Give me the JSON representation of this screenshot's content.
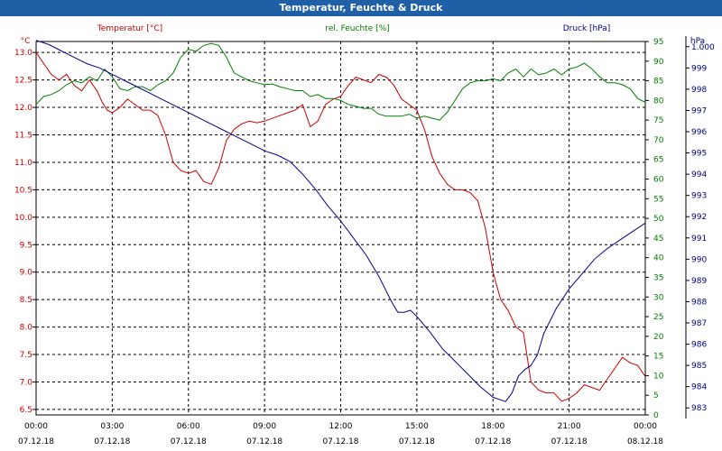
{
  "chart_data": {
    "type": "line",
    "title": "Temperatur, Feuchte & Druck",
    "legend_placement": "top",
    "grid": true,
    "x_ticks": [
      {
        "time": "00:00",
        "date": "07.12.18"
      },
      {
        "time": "03:00",
        "date": "07.12.18"
      },
      {
        "time": "06:00",
        "date": "07.12.18"
      },
      {
        "time": "09:00",
        "date": "07.12.18"
      },
      {
        "time": "12:00",
        "date": "07.12.18"
      },
      {
        "time": "15:00",
        "date": "07.12.18"
      },
      {
        "time": "18:00",
        "date": "07.12.18"
      },
      {
        "time": "21:00",
        "date": "07.12.18"
      },
      {
        "time": "00:00",
        "date": "08.12.18"
      }
    ],
    "xlim": [
      0,
      24
    ],
    "axes": {
      "temperature": {
        "unit_label": "°C",
        "ylim": [
          6.4,
          13.2
        ],
        "ticks": [
          "6.5",
          "7.0",
          "7.5",
          "8.0",
          "8.5",
          "9.0",
          "9.5",
          "10.0",
          "10.5",
          "11.0",
          "11.5",
          "12.0",
          "12.5",
          "13.0"
        ],
        "color": "#cc0000",
        "side": "left"
      },
      "humidity": {
        "unit_label": "%",
        "ylim": [
          0,
          95
        ],
        "ticks": [
          "0",
          "5",
          "10",
          "15",
          "20",
          "25",
          "30",
          "35",
          "40",
          "45",
          "50",
          "55",
          "60",
          "65",
          "70",
          "75",
          "80",
          "85",
          "90",
          "95"
        ],
        "color": "#008000",
        "side": "right"
      },
      "pressure": {
        "unit_label": "hPa",
        "ylim": [
          982.5,
          1000.5
        ],
        "ticks": [
          "983",
          "984",
          "985",
          "986",
          "987",
          "988",
          "989",
          "990",
          "991",
          "992",
          "993",
          "994",
          "995",
          "996",
          "997",
          "998",
          "999",
          "1.000"
        ],
        "color": "#00008b",
        "side": "right"
      }
    },
    "series": [
      {
        "name": "Temperatur [°C]",
        "axis": "temperature",
        "color": "#cc0000",
        "x": [
          0,
          0.3,
          0.6,
          0.9,
          1.2,
          1.5,
          1.8,
          2.1,
          2.4,
          2.6,
          2.8,
          3.0,
          3.3,
          3.6,
          3.9,
          4.2,
          4.5,
          4.8,
          5.1,
          5.4,
          5.7,
          6.0,
          6.3,
          6.6,
          6.9,
          7.2,
          7.5,
          7.8,
          8.1,
          8.4,
          8.7,
          9.0,
          9.3,
          9.6,
          9.9,
          10.2,
          10.5,
          10.8,
          11.1,
          11.4,
          11.7,
          12.0,
          12.3,
          12.6,
          12.9,
          13.2,
          13.5,
          13.8,
          14.1,
          14.4,
          14.7,
          15.0,
          15.3,
          15.6,
          15.9,
          16.2,
          16.5,
          16.8,
          17.1,
          17.4,
          17.7,
          18.0,
          18.3,
          18.6,
          18.9,
          19.2,
          19.5,
          19.8,
          20.1,
          20.4,
          20.7,
          21.0,
          21.3,
          21.6,
          21.9,
          22.2,
          22.5,
          22.8,
          23.1,
          23.4,
          23.7,
          24.0
        ],
        "y": [
          13.0,
          12.8,
          12.6,
          12.5,
          12.6,
          12.4,
          12.3,
          12.5,
          12.3,
          12.1,
          11.95,
          11.9,
          12.0,
          12.15,
          12.05,
          11.95,
          11.95,
          11.85,
          11.5,
          11.0,
          10.85,
          10.8,
          10.85,
          10.65,
          10.6,
          10.9,
          11.4,
          11.6,
          11.7,
          11.75,
          11.72,
          11.75,
          11.8,
          11.85,
          11.9,
          11.95,
          12.05,
          11.65,
          11.75,
          12.05,
          12.15,
          12.2,
          12.4,
          12.55,
          12.5,
          12.45,
          12.6,
          12.55,
          12.4,
          12.15,
          12.05,
          11.95,
          11.6,
          11.1,
          10.8,
          10.6,
          10.5,
          10.5,
          10.45,
          10.3,
          9.8,
          9.0,
          8.5,
          8.3,
          8.0,
          7.9,
          7.0,
          6.85,
          6.8,
          6.8,
          6.65,
          6.7,
          6.8,
          6.95,
          6.9,
          6.85,
          7.05,
          7.25,
          7.45,
          7.35,
          7.3,
          7.1
        ]
      },
      {
        "name": "rel. Feuchte [%]",
        "axis": "humidity",
        "color": "#008000",
        "x": [
          0,
          0.3,
          0.6,
          0.9,
          1.2,
          1.5,
          1.8,
          2.1,
          2.4,
          2.7,
          3.0,
          3.3,
          3.6,
          3.9,
          4.2,
          4.5,
          4.8,
          5.1,
          5.4,
          5.7,
          6.0,
          6.3,
          6.6,
          6.9,
          7.2,
          7.5,
          7.8,
          8.1,
          8.4,
          8.7,
          9.0,
          9.3,
          9.6,
          9.9,
          10.2,
          10.5,
          10.8,
          11.1,
          11.4,
          11.7,
          12.0,
          12.3,
          12.6,
          12.9,
          13.2,
          13.5,
          13.8,
          14.1,
          14.4,
          14.7,
          15.0,
          15.3,
          15.6,
          15.9,
          16.2,
          16.5,
          16.8,
          17.1,
          17.4,
          17.7,
          18.0,
          18.3,
          18.6,
          18.9,
          19.2,
          19.5,
          19.8,
          20.1,
          20.4,
          20.7,
          21.0,
          21.3,
          21.6,
          21.9,
          22.2,
          22.5,
          22.8,
          23.1,
          23.4,
          23.7,
          24.0
        ],
        "y": [
          79,
          81,
          81.5,
          82.5,
          84,
          85,
          84.5,
          86,
          85,
          88,
          86,
          83,
          82.5,
          83.5,
          83.5,
          82.5,
          84,
          85,
          87,
          91,
          93,
          92.5,
          94,
          94.5,
          94,
          91,
          87,
          86,
          85,
          84.5,
          84,
          84.2,
          83.5,
          83,
          82.5,
          82.5,
          81,
          81.5,
          80.5,
          80.5,
          80,
          79,
          78.5,
          78,
          78,
          76.5,
          76,
          76,
          76,
          76.5,
          75.5,
          76,
          75.5,
          75,
          77,
          80,
          83,
          84.5,
          85,
          85,
          85.5,
          85,
          87,
          88,
          86,
          88,
          86.5,
          87,
          88,
          86.5,
          88,
          88.5,
          89.5,
          88,
          86,
          84.5,
          84.5,
          84,
          83,
          80.5,
          79.5
        ]
      },
      {
        "name": "Druck [hPa]",
        "axis": "pressure",
        "color": "#00008b",
        "x": [
          0,
          0.5,
          1,
          1.5,
          2,
          2.5,
          3,
          3.5,
          4,
          4.5,
          5,
          5.5,
          6,
          6.5,
          7,
          7.5,
          8,
          8.5,
          9,
          9.5,
          10,
          10.5,
          11,
          11.5,
          12,
          12.5,
          13,
          13.5,
          14,
          14.25,
          14.5,
          14.75,
          15,
          15.5,
          16,
          16.5,
          17,
          17.5,
          18,
          18.25,
          18.5,
          18.75,
          19,
          19.25,
          19.5,
          19.75,
          20,
          20.5,
          21,
          21.5,
          22,
          22.5,
          23,
          23.5,
          24
        ],
        "y": [
          1000.3,
          1000.1,
          999.8,
          999.5,
          999.2,
          999.0,
          998.7,
          998.4,
          998.1,
          997.8,
          997.5,
          997.2,
          996.9,
          996.6,
          996.3,
          996.0,
          995.7,
          995.4,
          995.1,
          994.9,
          994.6,
          994.0,
          993.3,
          992.5,
          991.8,
          991.0,
          990.2,
          989.2,
          988.0,
          987.5,
          987.5,
          987.6,
          987.3,
          986.6,
          985.8,
          985.2,
          984.6,
          984.0,
          983.5,
          983.4,
          983.3,
          983.7,
          984.5,
          984.8,
          985.0,
          985.5,
          986.5,
          987.7,
          988.6,
          989.3,
          990.0,
          990.5,
          990.9,
          991.3,
          991.7
        ]
      }
    ]
  }
}
